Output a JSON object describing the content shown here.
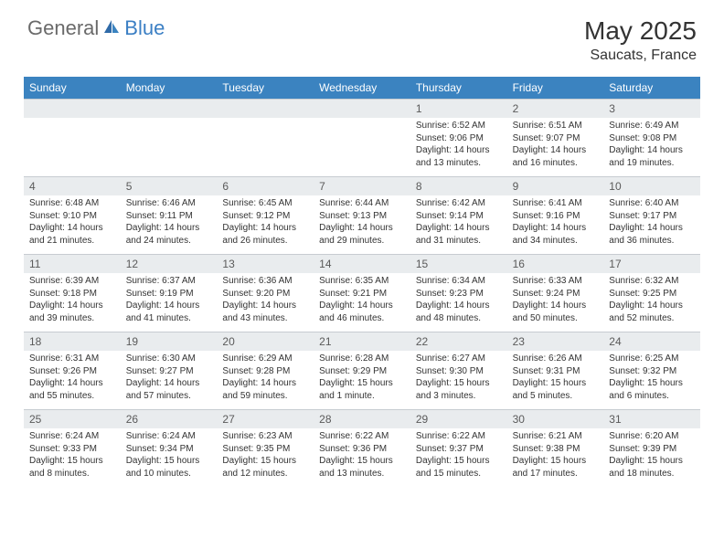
{
  "logo": {
    "part1": "General",
    "part2": "Blue"
  },
  "title": "May 2025",
  "location": "Saucats, France",
  "colors": {
    "header_bg": "#3b83c0",
    "header_text": "#ffffff",
    "daynum_bg": "#e9ecee",
    "border": "#9aa4ad",
    "logo_gray": "#6a6a6a",
    "logo_blue": "#3b7fc4"
  },
  "dayNames": [
    "Sunday",
    "Monday",
    "Tuesday",
    "Wednesday",
    "Thursday",
    "Friday",
    "Saturday"
  ],
  "weeks": [
    {
      "nums": [
        "",
        "",
        "",
        "",
        "1",
        "2",
        "3"
      ],
      "cells": [
        null,
        null,
        null,
        null,
        {
          "sunrise": "Sunrise: 6:52 AM",
          "sunset": "Sunset: 9:06 PM",
          "daylight": "Daylight: 14 hours and 13 minutes."
        },
        {
          "sunrise": "Sunrise: 6:51 AM",
          "sunset": "Sunset: 9:07 PM",
          "daylight": "Daylight: 14 hours and 16 minutes."
        },
        {
          "sunrise": "Sunrise: 6:49 AM",
          "sunset": "Sunset: 9:08 PM",
          "daylight": "Daylight: 14 hours and 19 minutes."
        }
      ]
    },
    {
      "nums": [
        "4",
        "5",
        "6",
        "7",
        "8",
        "9",
        "10"
      ],
      "cells": [
        {
          "sunrise": "Sunrise: 6:48 AM",
          "sunset": "Sunset: 9:10 PM",
          "daylight": "Daylight: 14 hours and 21 minutes."
        },
        {
          "sunrise": "Sunrise: 6:46 AM",
          "sunset": "Sunset: 9:11 PM",
          "daylight": "Daylight: 14 hours and 24 minutes."
        },
        {
          "sunrise": "Sunrise: 6:45 AM",
          "sunset": "Sunset: 9:12 PM",
          "daylight": "Daylight: 14 hours and 26 minutes."
        },
        {
          "sunrise": "Sunrise: 6:44 AM",
          "sunset": "Sunset: 9:13 PM",
          "daylight": "Daylight: 14 hours and 29 minutes."
        },
        {
          "sunrise": "Sunrise: 6:42 AM",
          "sunset": "Sunset: 9:14 PM",
          "daylight": "Daylight: 14 hours and 31 minutes."
        },
        {
          "sunrise": "Sunrise: 6:41 AM",
          "sunset": "Sunset: 9:16 PM",
          "daylight": "Daylight: 14 hours and 34 minutes."
        },
        {
          "sunrise": "Sunrise: 6:40 AM",
          "sunset": "Sunset: 9:17 PM",
          "daylight": "Daylight: 14 hours and 36 minutes."
        }
      ]
    },
    {
      "nums": [
        "11",
        "12",
        "13",
        "14",
        "15",
        "16",
        "17"
      ],
      "cells": [
        {
          "sunrise": "Sunrise: 6:39 AM",
          "sunset": "Sunset: 9:18 PM",
          "daylight": "Daylight: 14 hours and 39 minutes."
        },
        {
          "sunrise": "Sunrise: 6:37 AM",
          "sunset": "Sunset: 9:19 PM",
          "daylight": "Daylight: 14 hours and 41 minutes."
        },
        {
          "sunrise": "Sunrise: 6:36 AM",
          "sunset": "Sunset: 9:20 PM",
          "daylight": "Daylight: 14 hours and 43 minutes."
        },
        {
          "sunrise": "Sunrise: 6:35 AM",
          "sunset": "Sunset: 9:21 PM",
          "daylight": "Daylight: 14 hours and 46 minutes."
        },
        {
          "sunrise": "Sunrise: 6:34 AM",
          "sunset": "Sunset: 9:23 PM",
          "daylight": "Daylight: 14 hours and 48 minutes."
        },
        {
          "sunrise": "Sunrise: 6:33 AM",
          "sunset": "Sunset: 9:24 PM",
          "daylight": "Daylight: 14 hours and 50 minutes."
        },
        {
          "sunrise": "Sunrise: 6:32 AM",
          "sunset": "Sunset: 9:25 PM",
          "daylight": "Daylight: 14 hours and 52 minutes."
        }
      ]
    },
    {
      "nums": [
        "18",
        "19",
        "20",
        "21",
        "22",
        "23",
        "24"
      ],
      "cells": [
        {
          "sunrise": "Sunrise: 6:31 AM",
          "sunset": "Sunset: 9:26 PM",
          "daylight": "Daylight: 14 hours and 55 minutes."
        },
        {
          "sunrise": "Sunrise: 6:30 AM",
          "sunset": "Sunset: 9:27 PM",
          "daylight": "Daylight: 14 hours and 57 minutes."
        },
        {
          "sunrise": "Sunrise: 6:29 AM",
          "sunset": "Sunset: 9:28 PM",
          "daylight": "Daylight: 14 hours and 59 minutes."
        },
        {
          "sunrise": "Sunrise: 6:28 AM",
          "sunset": "Sunset: 9:29 PM",
          "daylight": "Daylight: 15 hours and 1 minute."
        },
        {
          "sunrise": "Sunrise: 6:27 AM",
          "sunset": "Sunset: 9:30 PM",
          "daylight": "Daylight: 15 hours and 3 minutes."
        },
        {
          "sunrise": "Sunrise: 6:26 AM",
          "sunset": "Sunset: 9:31 PM",
          "daylight": "Daylight: 15 hours and 5 minutes."
        },
        {
          "sunrise": "Sunrise: 6:25 AM",
          "sunset": "Sunset: 9:32 PM",
          "daylight": "Daylight: 15 hours and 6 minutes."
        }
      ]
    },
    {
      "nums": [
        "25",
        "26",
        "27",
        "28",
        "29",
        "30",
        "31"
      ],
      "cells": [
        {
          "sunrise": "Sunrise: 6:24 AM",
          "sunset": "Sunset: 9:33 PM",
          "daylight": "Daylight: 15 hours and 8 minutes."
        },
        {
          "sunrise": "Sunrise: 6:24 AM",
          "sunset": "Sunset: 9:34 PM",
          "daylight": "Daylight: 15 hours and 10 minutes."
        },
        {
          "sunrise": "Sunrise: 6:23 AM",
          "sunset": "Sunset: 9:35 PM",
          "daylight": "Daylight: 15 hours and 12 minutes."
        },
        {
          "sunrise": "Sunrise: 6:22 AM",
          "sunset": "Sunset: 9:36 PM",
          "daylight": "Daylight: 15 hours and 13 minutes."
        },
        {
          "sunrise": "Sunrise: 6:22 AM",
          "sunset": "Sunset: 9:37 PM",
          "daylight": "Daylight: 15 hours and 15 minutes."
        },
        {
          "sunrise": "Sunrise: 6:21 AM",
          "sunset": "Sunset: 9:38 PM",
          "daylight": "Daylight: 15 hours and 17 minutes."
        },
        {
          "sunrise": "Sunrise: 6:20 AM",
          "sunset": "Sunset: 9:39 PM",
          "daylight": "Daylight: 15 hours and 18 minutes."
        }
      ]
    }
  ]
}
